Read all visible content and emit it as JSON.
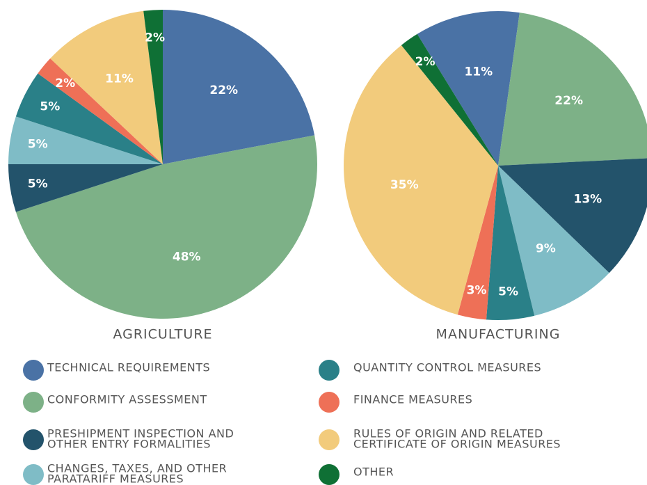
{
  "chart_data": [
    {
      "type": "pie",
      "title": "AGRICULTURE",
      "start_angle": 0,
      "values": [
        22,
        48,
        5,
        5,
        5,
        2,
        11,
        2
      ],
      "value_labels": [
        "22%",
        "48%",
        "5%",
        "5%",
        "5%",
        "2%",
        "11%",
        "2%"
      ]
    },
    {
      "type": "pie",
      "title": "MANUFACTURING",
      "start_angle": -31.6,
      "values": [
        11,
        22,
        13,
        9,
        5,
        3,
        35,
        2
      ],
      "value_labels": [
        "11%",
        "22%",
        "13%",
        "9%",
        "5%",
        "3%",
        "35%",
        "2%"
      ]
    }
  ],
  "legend": {
    "items": [
      {
        "name": [
          "TECHNICAL REQUIREMENTS"
        ],
        "color": "#4a72a5"
      },
      {
        "name": [
          "CONFORMITY ASSESSMENT"
        ],
        "color": "#7db187"
      },
      {
        "name": [
          "PRESHIPMENT INSPECTION AND",
          "OTHER ENTRY FORMALITIES"
        ],
        "color": "#23536b"
      },
      {
        "name": [
          "CHANGES, TAXES, AND OTHER",
          "PARATARIFF MEASURES"
        ],
        "color": "#7fbcc6"
      },
      {
        "name": [
          "QUANTITY CONTROL MEASURES"
        ],
        "color": "#2a8088"
      },
      {
        "name": [
          "FINANCE MEASURES"
        ],
        "color": "#ee7057"
      },
      {
        "name": [
          "RULES OF ORIGIN AND RELATED",
          "CERTIFICATE OF ORIGIN MEASURES"
        ],
        "color": "#f2cb7c"
      },
      {
        "name": [
          "OTHER"
        ],
        "color": "#0f7035"
      }
    ]
  }
}
